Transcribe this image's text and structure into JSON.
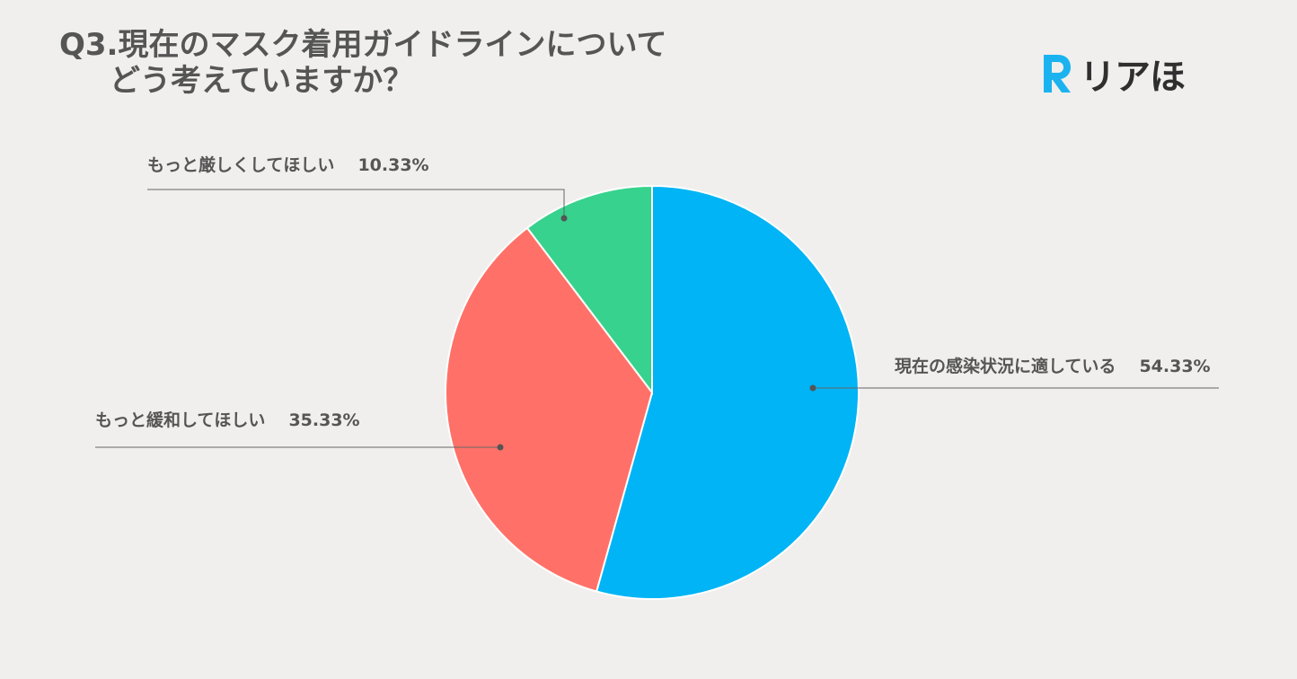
{
  "header": {
    "title_line1": "Q3.現在のマスク着用ガイドラインについて",
    "title_line2": "どう考えていますか？"
  },
  "logo": {
    "text": "リアほ",
    "icon": "r-logo-icon",
    "color": "#1ab3f0"
  },
  "chart_data": {
    "type": "pie",
    "title": "Q3.現在のマスク着用ガイドラインについて どう考えていますか？",
    "start_angle_deg": 0,
    "direction": "clockwise",
    "slices": [
      {
        "label": "現在の感染状況に適している",
        "percent_text": "54.33%",
        "value": 54.33,
        "color": "#00b4f5"
      },
      {
        "label": "もっと緩和してほしい",
        "percent_text": "35.33%",
        "value": 35.33,
        "color": "#ff7168"
      },
      {
        "label": "もっと厳しくしてほしい",
        "percent_text": "10.33%",
        "value": 10.33,
        "color": "#37d28d"
      }
    ],
    "legend": "none",
    "label_color": "#555555",
    "leader_color": "#666666"
  }
}
